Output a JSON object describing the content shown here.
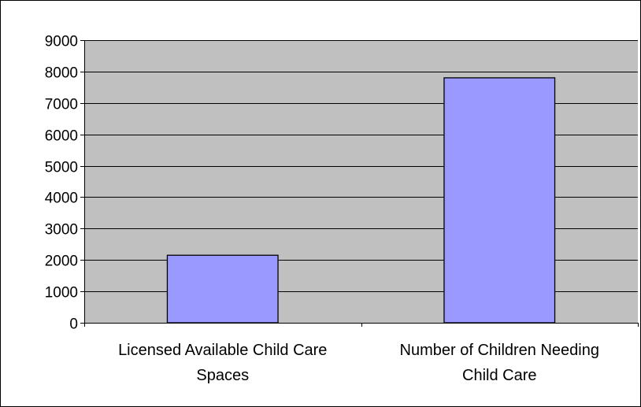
{
  "chart_data": {
    "type": "bar",
    "categories": [
      [
        "Licensed Available Child Care",
        "Spaces"
      ],
      [
        "Number of Children Needing",
        "Child Care"
      ]
    ],
    "values": [
      2150,
      7800
    ],
    "ylim": [
      0,
      9000
    ],
    "yticks": [
      "0",
      "1000",
      "2000",
      "3000",
      "4000",
      "5000",
      "6000",
      "7000",
      "8000",
      "9000"
    ],
    "title": "",
    "xlabel": "",
    "ylabel": "",
    "grid": true,
    "legend": "none",
    "colors": {
      "plot_background": "#c0c0c0",
      "bar_fill": "#9999ff",
      "bar_stroke": "#000000",
      "gridline": "#000000",
      "frame": "#000000"
    }
  }
}
